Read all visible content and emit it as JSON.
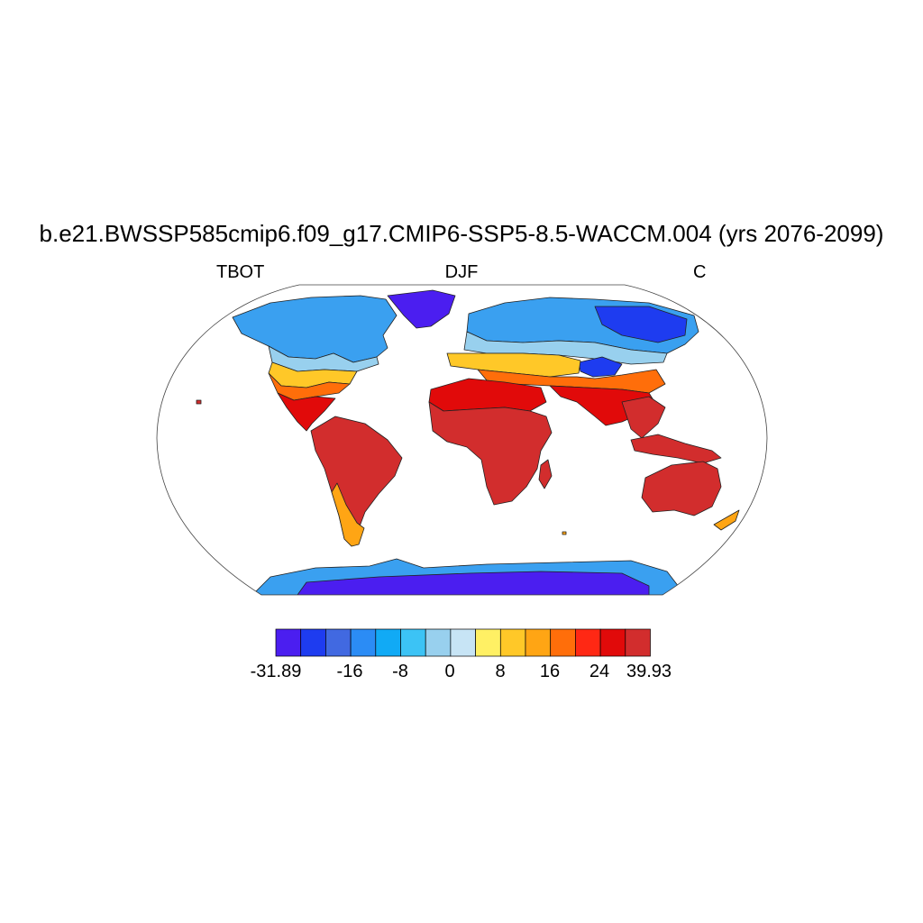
{
  "title": "b.e21.BWSSP585cmip6.f09_g17.CMIP6-SSP5-8.5-WACCM.004 (yrs 2076-2099)",
  "left_string": "TBOT",
  "center_string": "DJF",
  "right_string": "C",
  "colorbar": {
    "colors": [
      "#4b1ef0",
      "#1e3cf0",
      "#4169e1",
      "#2b8cf5",
      "#11aaf5",
      "#3cc3f5",
      "#98d0ee",
      "#c7e4f5",
      "#fff064",
      "#ffc828",
      "#ffa514",
      "#ff6e0a",
      "#ff2814",
      "#e10a0a",
      "#d22d2d"
    ],
    "labels": [
      {
        "text": "-31.89",
        "slot": 0
      },
      {
        "text": "-16",
        "slot": 2
      },
      {
        "text": "-8",
        "slot": 3
      },
      {
        "text": "0",
        "slot": 4
      },
      {
        "text": "8",
        "slot": 5
      },
      {
        "text": "16",
        "slot": 6
      },
      {
        "text": "24",
        "slot": 7
      },
      {
        "text": "39.93",
        "slot": 8
      }
    ]
  }
}
